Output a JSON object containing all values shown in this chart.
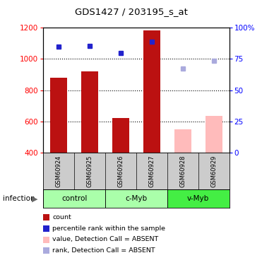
{
  "title": "GDS1427 / 203195_s_at",
  "samples": [
    "GSM60924",
    "GSM60925",
    "GSM60926",
    "GSM60927",
    "GSM60928",
    "GSM60929"
  ],
  "bar_values_present": [
    880,
    920,
    620,
    1185
  ],
  "bar_values_absent": [
    550,
    635
  ],
  "absent_bar_indices": [
    4,
    5
  ],
  "present_bar_indices": [
    0,
    1,
    2,
    3
  ],
  "bar_color_present": "#bb1111",
  "bar_color_absent": "#ffbbbb",
  "rank_values": [
    1080,
    1085,
    1040,
    1110,
    940,
    990
  ],
  "rank_absent": [
    false,
    false,
    false,
    false,
    true,
    true
  ],
  "rank_color_present": "#2222cc",
  "rank_color_absent": "#aaaadd",
  "ymin": 400,
  "ymax": 1200,
  "yticks_left": [
    400,
    600,
    800,
    1000,
    1200
  ],
  "yticks_right_labels": [
    "0",
    "25",
    "50",
    "75",
    "100%"
  ],
  "yticks_right_positions": [
    400,
    600,
    800,
    1000,
    1200
  ],
  "grid_lines": [
    600,
    800,
    1000
  ],
  "group_info": [
    {
      "label": "control",
      "start": 0,
      "end": 1,
      "color": "#aaffaa"
    },
    {
      "label": "c-Myb",
      "start": 2,
      "end": 3,
      "color": "#aaffaa"
    },
    {
      "label": "v-Myb",
      "start": 4,
      "end": 5,
      "color": "#44ee44"
    }
  ],
  "sample_bg_color": "#cccccc",
  "legend_items": [
    {
      "color": "#bb1111",
      "label": "count"
    },
    {
      "color": "#2222cc",
      "label": "percentile rank within the sample"
    },
    {
      "color": "#ffbbbb",
      "label": "value, Detection Call = ABSENT"
    },
    {
      "color": "#aaaadd",
      "label": "rank, Detection Call = ABSENT"
    }
  ],
  "infection_label": "infection"
}
